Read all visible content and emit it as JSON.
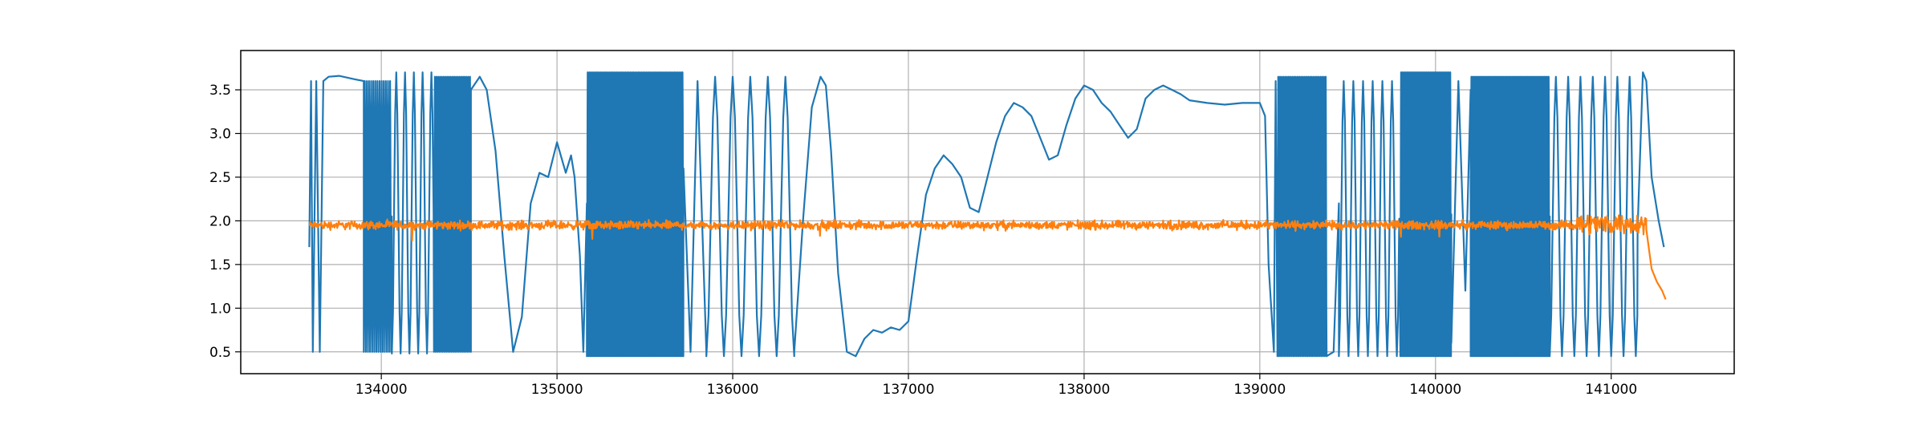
{
  "chart_data": {
    "type": "line",
    "title": "",
    "xlabel": "",
    "ylabel": "",
    "xlim": [
      133200,
      141700
    ],
    "ylim": [
      0.25,
      3.95
    ],
    "grid": true,
    "x_ticks": [
      134000,
      135000,
      136000,
      137000,
      138000,
      139000,
      140000,
      141000
    ],
    "x_tick_labels": [
      "134000",
      "135000",
      "136000",
      "137000",
      "138000",
      "139000",
      "140000",
      "141000"
    ],
    "y_ticks": [
      0.5,
      1.0,
      1.5,
      2.0,
      2.5,
      3.0,
      3.5
    ],
    "y_tick_labels": [
      "0.5",
      "1.0",
      "1.5",
      "2.0",
      "2.5",
      "3.0",
      "3.5"
    ],
    "series": [
      {
        "color": "#1f77b4",
        "segments": [
          {
            "kind": "points",
            "x": [
              133590,
              133600,
              133610,
              133630,
              133650,
              133670,
              133700,
              133760,
              133850,
              133900
            ],
            "y": [
              1.7,
              3.6,
              0.5,
              3.6,
              0.5,
              3.6,
              3.65,
              3.66,
              3.62,
              3.6
            ]
          },
          {
            "kind": "osc",
            "x0": 133900,
            "x1": 134060,
            "period": 12,
            "low": 0.5,
            "high": 3.6
          },
          {
            "kind": "osc",
            "x0": 134060,
            "x1": 134300,
            "period": 50,
            "low": 0.48,
            "high": 3.7
          },
          {
            "kind": "osc",
            "x0": 134300,
            "x1": 134510,
            "period": 10,
            "low": 0.5,
            "high": 3.65
          },
          {
            "kind": "points",
            "x": [
              134510,
              134560,
              134600,
              134650,
              134700,
              134750,
              134800,
              134850,
              134900,
              134950,
              135000,
              135050,
              135080,
              135100,
              135130,
              135150,
              135170
            ],
            "y": [
              3.5,
              3.65,
              3.5,
              2.8,
              1.6,
              0.5,
              0.9,
              2.2,
              2.55,
              2.5,
              2.9,
              2.55,
              2.75,
              2.5,
              1.6,
              0.5,
              2.2
            ]
          },
          {
            "kind": "osc",
            "x0": 135170,
            "x1": 135720,
            "period": 9,
            "low": 0.45,
            "high": 3.7
          },
          {
            "kind": "points",
            "x": [
              135720,
              135760,
              135800,
              135850
            ],
            "y": [
              2.6,
              0.5,
              3.6,
              0.5
            ]
          },
          {
            "kind": "osc",
            "x0": 135850,
            "x1": 136350,
            "period": 100,
            "low": 0.45,
            "high": 3.65
          },
          {
            "kind": "points",
            "x": [
              136350,
              136400,
              136450,
              136500,
              136530,
              136560,
              136600,
              136650,
              136700,
              136750,
              136800,
              136850,
              136900,
              136950,
              137000,
              137050,
              137100,
              137150,
              137200,
              137250,
              137300,
              137350,
              137400,
              137450,
              137500,
              137550,
              137600,
              137650,
              137700,
              137750,
              137800,
              137850,
              137900,
              137950,
              138000,
              138050,
              138100,
              138150,
              138200,
              138250,
              138300,
              138350,
              138400,
              138450,
              138500,
              138550,
              138600,
              138700,
              138800,
              138900,
              139000,
              139030,
              139050,
              139080,
              139090,
              139100
            ],
            "y": [
              0.5,
              2.0,
              3.3,
              3.65,
              3.55,
              2.8,
              1.4,
              0.5,
              0.45,
              0.65,
              0.75,
              0.72,
              0.78,
              0.75,
              0.85,
              1.6,
              2.3,
              2.6,
              2.75,
              2.65,
              2.5,
              2.15,
              2.1,
              2.5,
              2.9,
              3.2,
              3.35,
              3.3,
              3.2,
              2.95,
              2.7,
              2.75,
              3.1,
              3.4,
              3.55,
              3.5,
              3.35,
              3.25,
              3.1,
              2.95,
              3.05,
              3.4,
              3.5,
              3.55,
              3.5,
              3.45,
              3.38,
              3.35,
              3.33,
              3.35,
              3.35,
              3.2,
              1.5,
              0.5,
              3.6,
              0.5
            ]
          },
          {
            "kind": "osc",
            "x0": 139100,
            "x1": 139380,
            "period": 10,
            "low": 0.45,
            "high": 3.65
          },
          {
            "kind": "points",
            "x": [
              139380,
              139420,
              139450
            ],
            "y": [
              0.45,
              0.5,
              2.2
            ]
          },
          {
            "kind": "osc",
            "x0": 139450,
            "x1": 139800,
            "period": 55,
            "low": 0.45,
            "high": 3.6
          },
          {
            "kind": "osc",
            "x0": 139800,
            "x1": 140090,
            "period": 8,
            "low": 0.45,
            "high": 3.7
          },
          {
            "kind": "points",
            "x": [
              140090,
              140130,
              140170,
              140200
            ],
            "y": [
              0.6,
              3.6,
              1.2,
              3.5
            ]
          },
          {
            "kind": "osc",
            "x0": 140200,
            "x1": 140650,
            "period": 8,
            "low": 0.45,
            "high": 3.65
          },
          {
            "kind": "osc",
            "x0": 140650,
            "x1": 141150,
            "period": 70,
            "low": 0.45,
            "high": 3.65
          },
          {
            "kind": "points",
            "x": [
              141150,
              141180,
              141200,
              141230,
              141270,
              141300
            ],
            "y": [
              1.9,
              3.7,
              3.6,
              2.5,
              2.0,
              1.7
            ]
          }
        ]
      },
      {
        "color": "#ff7f0e",
        "segments": [
          {
            "kind": "noise",
            "x0": 133590,
            "x1": 140800,
            "step": 3,
            "center": 1.95,
            "amp": 0.03
          },
          {
            "kind": "noise",
            "x0": 140800,
            "x1": 141200,
            "step": 3,
            "center": 1.97,
            "amp": 0.07
          },
          {
            "kind": "points",
            "x": [
              141200,
              141230,
              141260,
              141290,
              141310
            ],
            "y": [
              1.9,
              1.45,
              1.3,
              1.2,
              1.1
            ]
          }
        ]
      }
    ]
  }
}
